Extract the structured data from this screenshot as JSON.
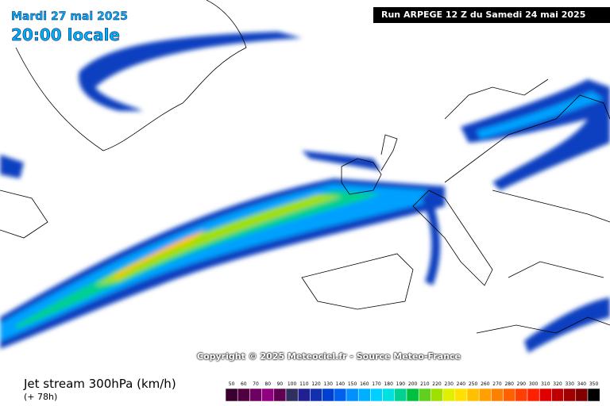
{
  "header": {
    "date": "Mardi 27 mai 2025",
    "hour": "20:00 locale",
    "run": "Run ARPEGE 12 Z du Samedi 24 mai 2025"
  },
  "copyright": "Copyright © 2025 Meteociel.fr - Source Meteo-France",
  "legend": {
    "title": "Jet stream 300hPa (km/h)",
    "subtitle": "(+ 78h)",
    "levels": [
      50,
      60,
      70,
      80,
      90,
      100,
      110,
      120,
      130,
      140,
      150,
      160,
      170,
      180,
      190,
      200,
      210,
      220,
      230,
      240,
      250,
      260,
      270,
      280,
      290,
      300,
      310,
      320,
      330,
      340,
      350
    ],
    "colors": [
      "#3a0030",
      "#500040",
      "#700060",
      "#900080",
      "#600050",
      "#303060",
      "#202090",
      "#1030b0",
      "#0040d0",
      "#0060f0",
      "#0090ff",
      "#00b0ff",
      "#00d0ff",
      "#00e0e0",
      "#00d090",
      "#00c040",
      "#60d020",
      "#a0e000",
      "#e0f000",
      "#ffe000",
      "#ffc000",
      "#ffa000",
      "#ff8000",
      "#ff6000",
      "#ff4000",
      "#ff2000",
      "#e00000",
      "#c00000",
      "#a00000",
      "#800000",
      "#000000"
    ]
  }
}
